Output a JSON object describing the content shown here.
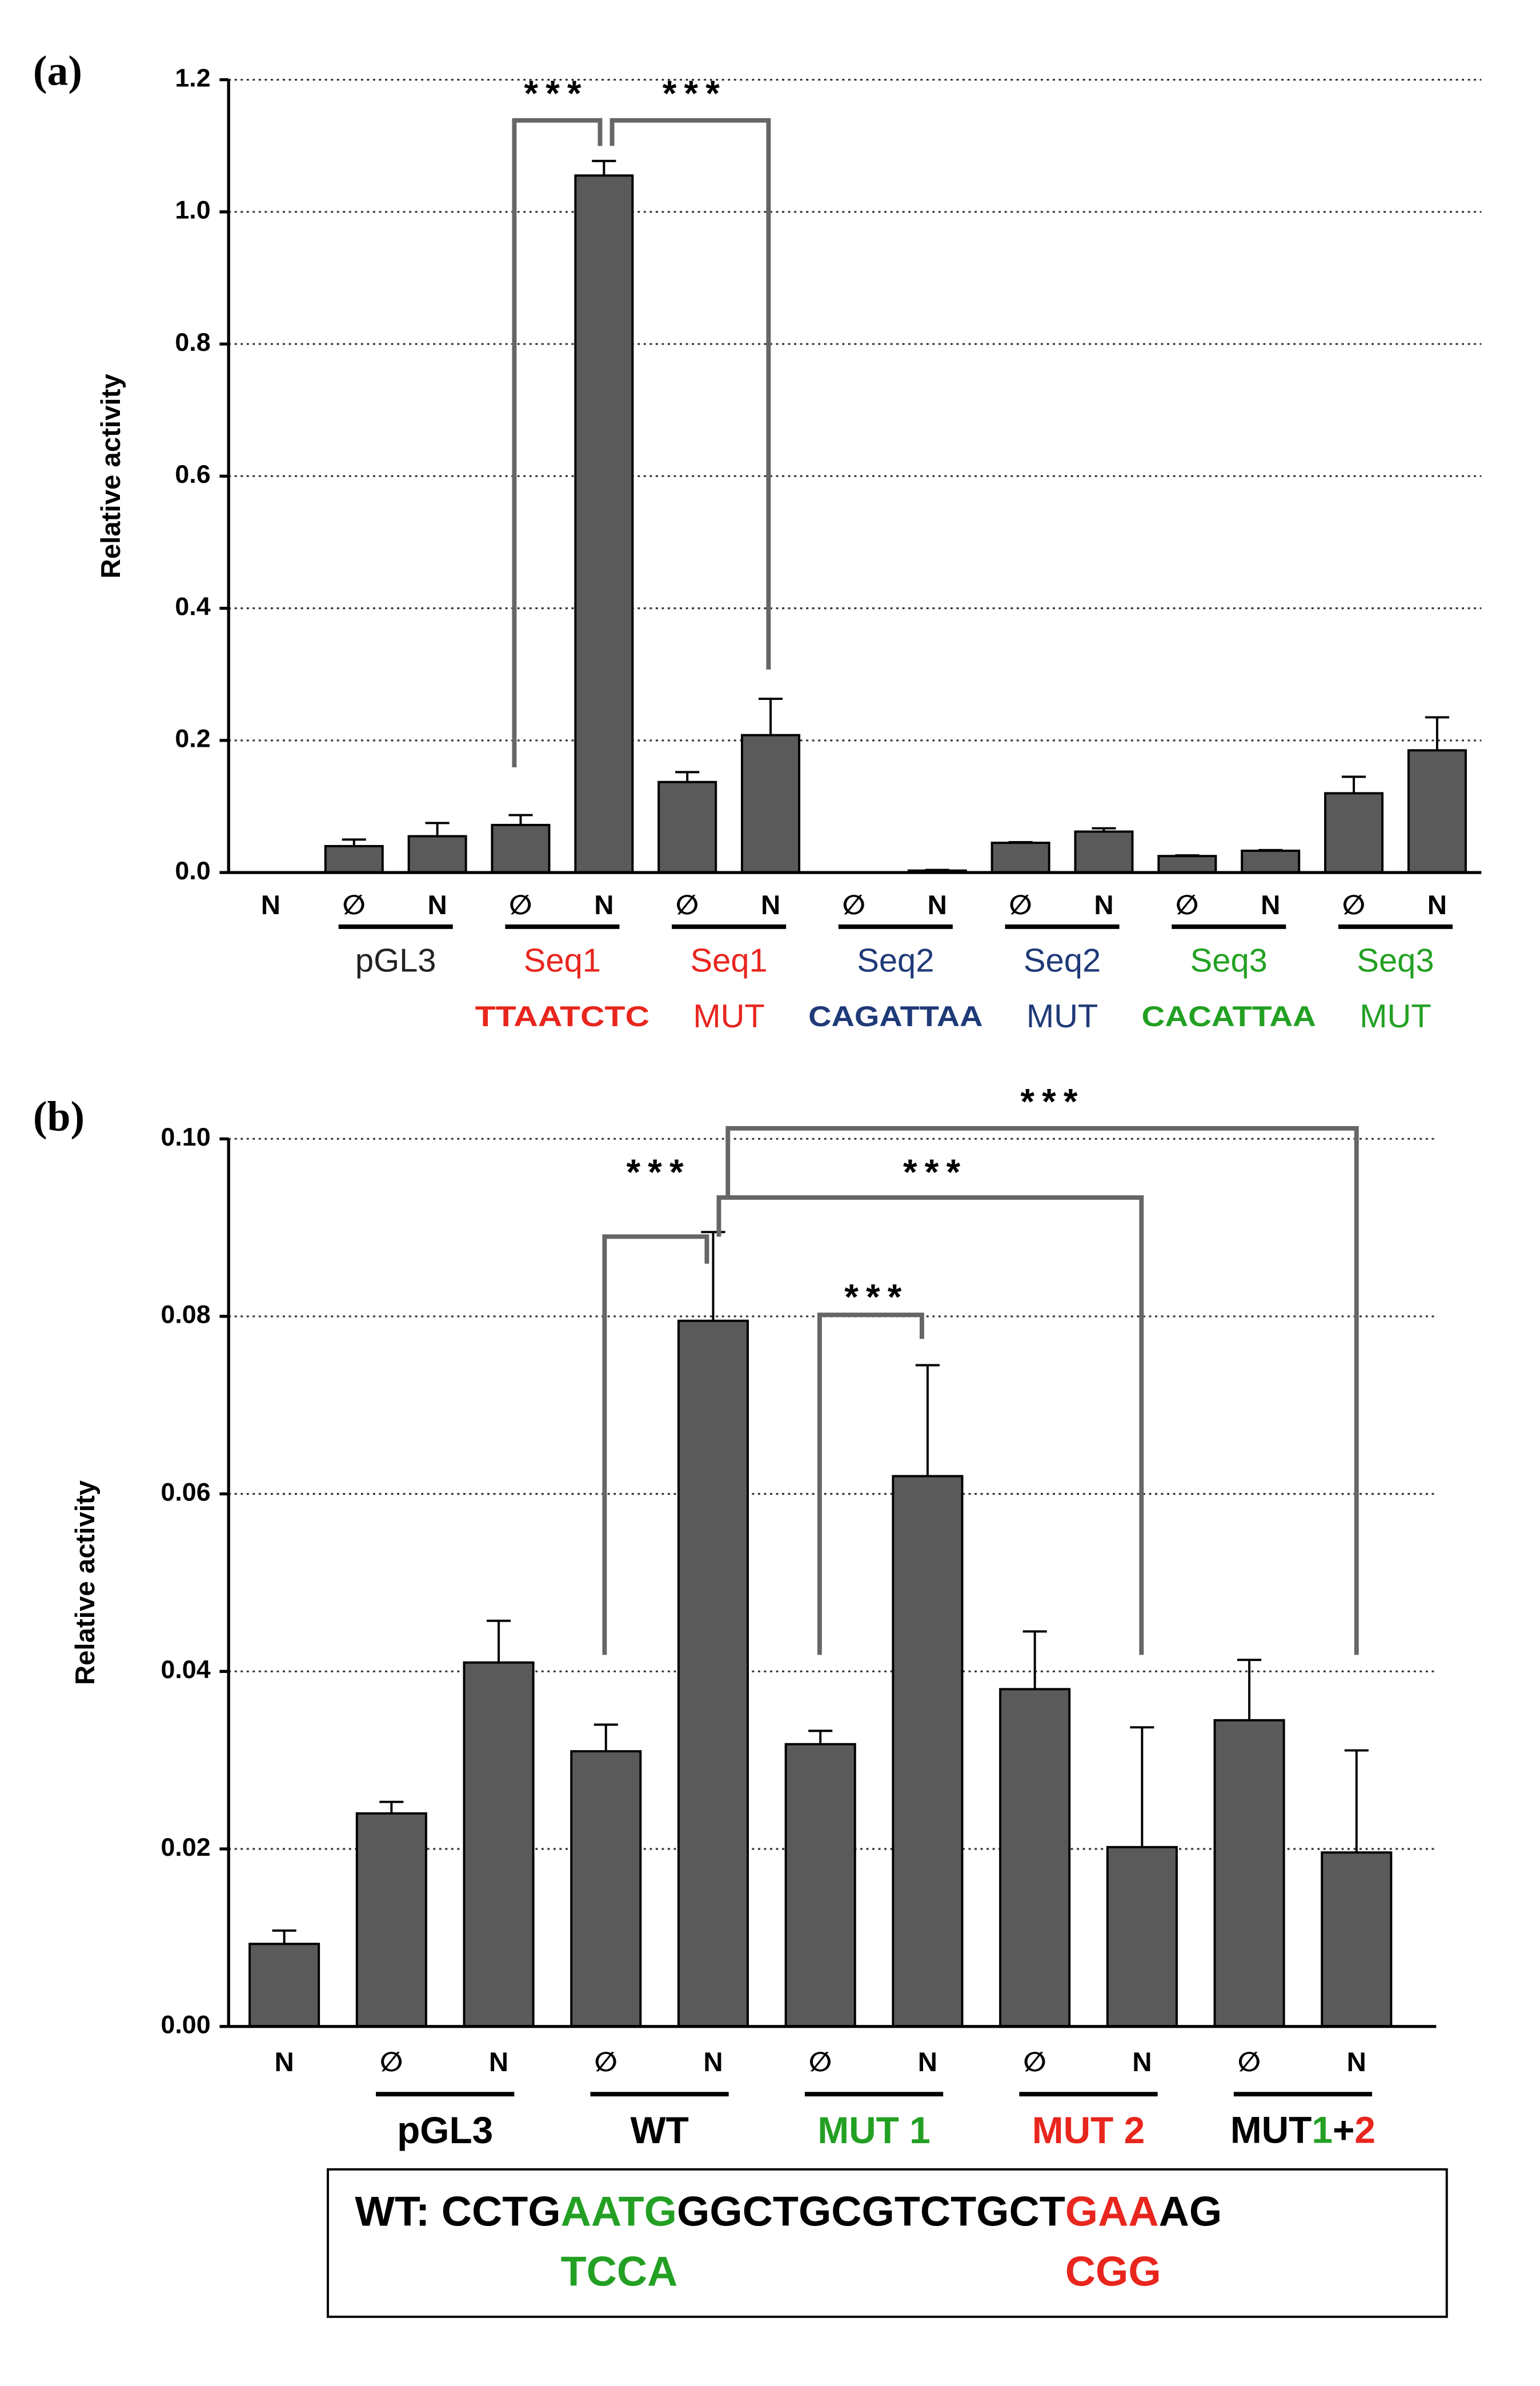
{
  "chart_data": [
    {
      "type": "bar",
      "panel_label": "(a)",
      "y_label": "Relative activity",
      "categories": [
        "N",
        "∅",
        "N",
        "∅",
        "N",
        "∅",
        "N",
        "∅",
        "N",
        "∅",
        "N",
        "∅",
        "N",
        "∅",
        "N"
      ],
      "values": [
        0,
        0.04,
        0.055,
        0.072,
        1.055,
        0.137,
        0.208,
        0,
        0.003,
        0.045,
        0.062,
        0.025,
        0.033,
        0.12,
        0.185
      ],
      "errors": [
        0,
        0.01,
        0.02,
        0.015,
        0.022,
        0.015,
        0.055,
        0,
        0.001,
        0.001,
        0.005,
        0.001,
        0.001,
        0.025,
        0.05
      ],
      "color": "#5a5a5a",
      "grid": true,
      "ylim": [
        0,
        1.2
      ],
      "yticks": [
        {
          "value": 0,
          "label": "0.0"
        },
        0.2,
        0.4,
        0.6,
        0.8,
        {
          "value": 1,
          "label": "1.0"
        },
        1.2
      ],
      "groups": [
        {
          "name": "pGL3",
          "color": "#222222"
        },
        {
          "name": "Seq1",
          "sub": "TTAATCTC",
          "color": "#e8261e"
        },
        {
          "name": "Seq1",
          "sub": "MUT",
          "color": "#e8261e"
        },
        {
          "name": "Seq2",
          "sub": "CAGATTAA",
          "color": "#1f3a78"
        },
        {
          "name": "Seq2",
          "sub": "MUT",
          "color": "#1f3a78"
        },
        {
          "name": "Seq3",
          "sub": "CACATTAA",
          "color": "#23a023"
        },
        {
          "name": "Seq3",
          "sub": "MUT",
          "color": "#23a023"
        }
      ],
      "annotations": [
        "***",
        "***"
      ]
    },
    {
      "type": "bar",
      "panel_label": "(b)",
      "y_label": "Relative activity",
      "categories": [
        "N",
        "∅",
        "N",
        "∅",
        "N",
        "∅",
        "N",
        "∅",
        "N",
        "∅",
        "N"
      ],
      "values": [
        0.0093,
        0.024,
        0.041,
        0.031,
        0.0795,
        0.0318,
        0.062,
        0.038,
        0.0202,
        0.0345,
        0.0196
      ],
      "errors": [
        0.0015,
        0.0013,
        0.0047,
        0.003,
        0.01,
        0.0015,
        0.0125,
        0.0065,
        0.0135,
        0.0068,
        0.0115
      ],
      "color": "#5a5a5a",
      "grid": true,
      "ylim": [
        0,
        0.1
      ],
      "yticks": [
        {
          "value": 0,
          "label": "0.00"
        },
        {
          "value": 0.02,
          "label": "0.02"
        },
        {
          "value": 0.04,
          "label": "0.04"
        },
        {
          "value": 0.06,
          "label": "0.06"
        },
        {
          "value": 0.08,
          "label": "0.08"
        },
        {
          "value": 0.1,
          "label": "0.10"
        }
      ],
      "groups": [
        {
          "name": "pGL3",
          "color": "#000000"
        },
        {
          "name": "WT",
          "color": "#000000"
        },
        {
          "name": "MUT 1",
          "color": "#23a023"
        },
        {
          "name": "MUT 2",
          "color": "#e8261e"
        },
        {
          "name_parts": [
            {
              "text": "MUT",
              "color": "#000000"
            },
            {
              "text": "1",
              "color": "#23a023"
            },
            {
              "text": "+",
              "color": "#000000"
            },
            {
              "text": "2",
              "color": "#e8261e"
            }
          ]
        }
      ],
      "annotations": [
        "***",
        "***",
        "***",
        "***"
      ],
      "sequence": {
        "line1": [
          {
            "text": "WT: CCTG",
            "color": "#000000"
          },
          {
            "text": "AATG",
            "color": "#23a023"
          },
          {
            "text": "GGCTGCGTCTGCT",
            "color": "#000000"
          },
          {
            "text": "GAA",
            "color": "#e8261e"
          },
          {
            "text": "AG",
            "color": "#000000"
          }
        ],
        "line2": [
          {
            "text": "TCCA",
            "color": "#23a023"
          },
          {
            "text": "CGG",
            "color": "#e8261e"
          }
        ]
      }
    }
  ]
}
